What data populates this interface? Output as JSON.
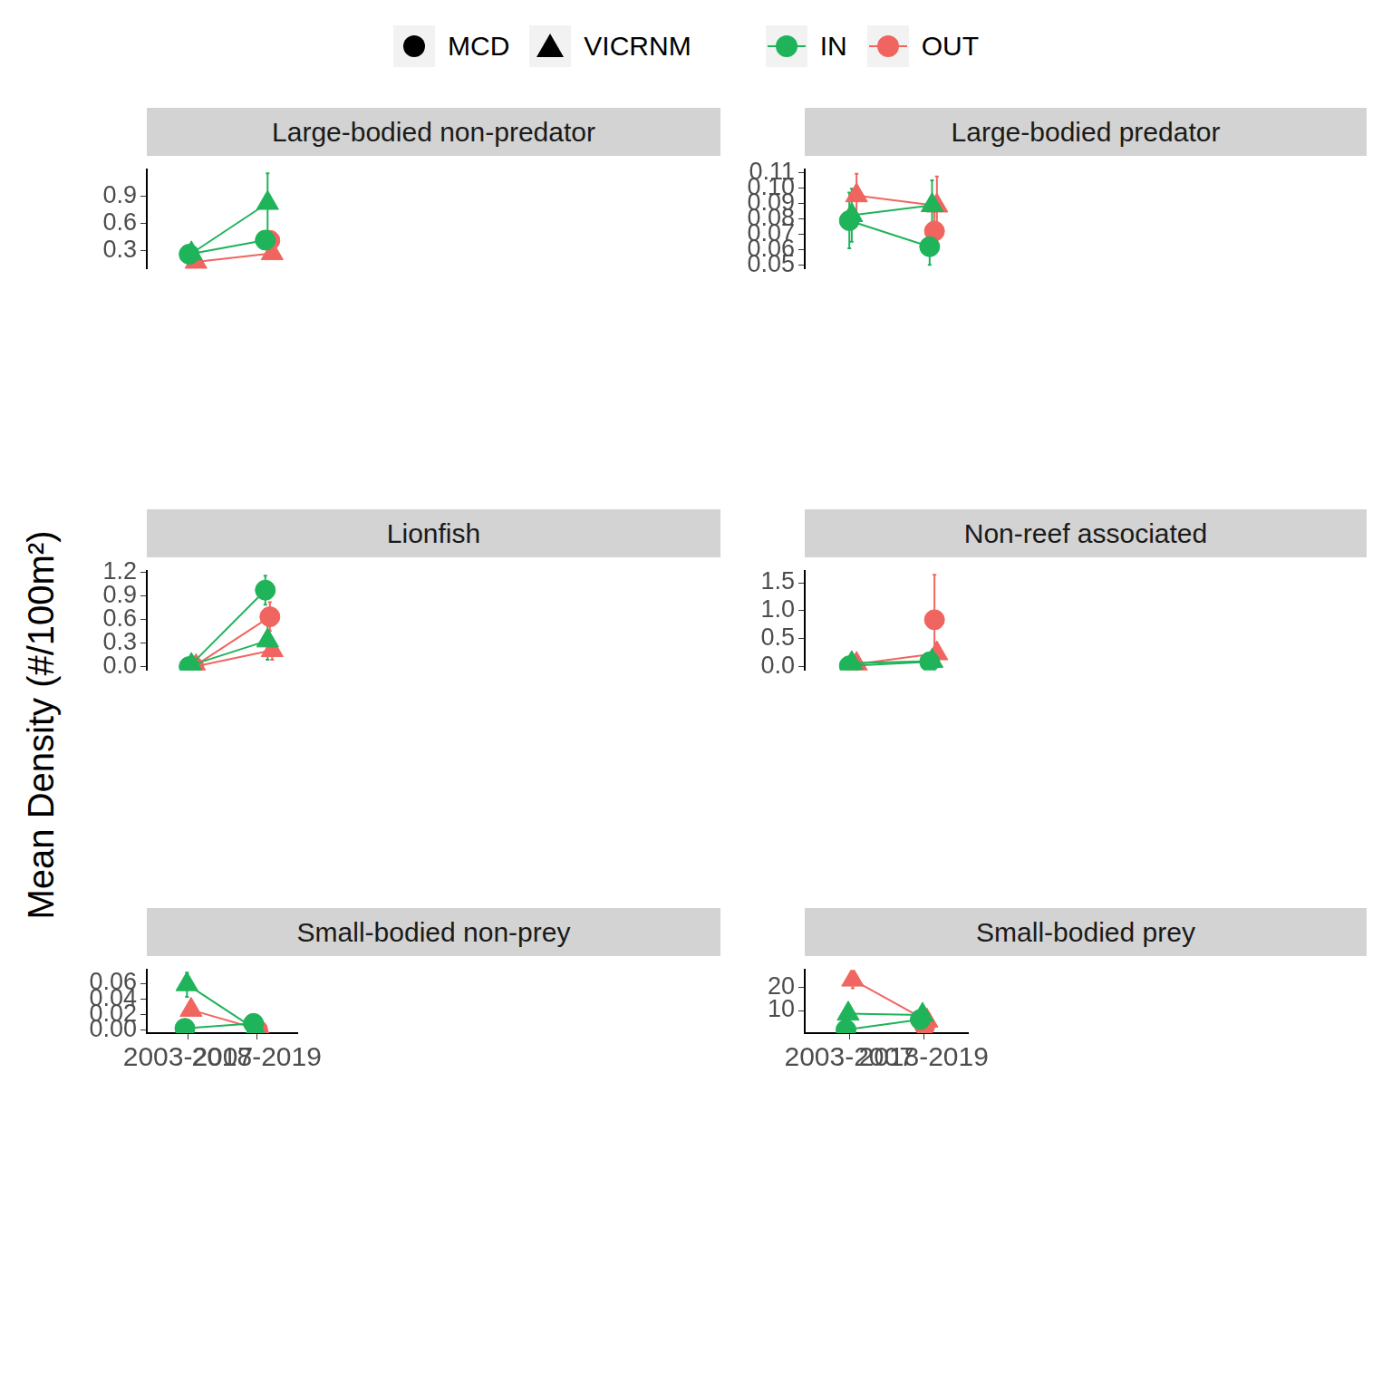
{
  "ylabel": "Mean Density (#/100m²)",
  "legend_items": [
    {
      "name": "MCD",
      "marker": "circle"
    },
    {
      "name": "VICRNM",
      "marker": "triangle"
    },
    {
      "name": "IN",
      "color": "#1fb35a"
    },
    {
      "name": "OUT",
      "color": "#f06560"
    }
  ],
  "chart_data": [
    {
      "type": "line",
      "title": "Large-bodied non-predator",
      "categories": [
        "2003-2007",
        "2018-2019"
      ],
      "ylim": [
        0.095,
        1.19
      ],
      "yticks": [
        0.3,
        0.6,
        0.9
      ],
      "grid": false,
      "tick_labels": "y",
      "series": [
        {
          "marker": "circle",
          "color": "#1fb35a",
          "values": [
            0.258,
            0.413
          ],
          "error_low": [
            0.21,
            0.36
          ],
          "error_high": [
            0.31,
            0.47
          ]
        },
        {
          "marker": "triangle",
          "color": "#1fb35a",
          "values": [
            0.265,
            0.822
          ],
          "error_low": [
            0.22,
            0.32
          ],
          "error_high": [
            0.31,
            1.15
          ]
        },
        {
          "marker": "circle",
          "color": "#f06560",
          "values": [
            null,
            0.41
          ],
          "error_low": [
            null,
            0.36
          ],
          "error_high": [
            null,
            0.46
          ]
        },
        {
          "marker": "triangle",
          "color": "#f06560",
          "values": [
            0.172,
            0.267
          ],
          "error_low": [
            null,
            0.23
          ],
          "error_high": [
            null,
            0.31
          ]
        }
      ]
    },
    {
      "type": "line",
      "title": "Large-bodied predator",
      "categories": [
        "2003-2007",
        "2018-2019"
      ],
      "ylim": [
        0.0476,
        0.1119
      ],
      "yticks": [
        0.05,
        0.06,
        0.07,
        0.08,
        0.09,
        {
          "value": 0.1,
          "label": "0.10"
        },
        0.11
      ],
      "grid": false,
      "tick_labels": "y",
      "series": [
        {
          "marker": "circle",
          "color": "#1fb35a",
          "values": [
            0.0789,
            0.062
          ],
          "error_low": [
            0.061,
            0.0503
          ],
          "error_high": [
            0.097,
            0.0737
          ]
        },
        {
          "marker": "triangle",
          "color": "#1fb35a",
          "values": [
            0.0824,
            0.0888
          ],
          "error_low": [
            0.0653,
            0.072
          ],
          "error_high": [
            0.0996,
            0.105
          ]
        },
        {
          "marker": "circle",
          "color": "#f06560",
          "values": [
            null,
            0.0721
          ],
          "error_low": [
            null,
            0.0591
          ],
          "error_high": [
            null,
            0.0847
          ]
        },
        {
          "marker": "triangle",
          "color": "#f06560",
          "values": [
            0.0952,
            0.0886
          ],
          "error_low": [
            0.0803,
            0.0686
          ],
          "error_high": [
            0.1093,
            0.1074
          ]
        }
      ]
    },
    {
      "type": "line",
      "title": "Lionfish",
      "categories": [
        "2003-2007",
        "2018-2019"
      ],
      "ylim": [
        -0.048,
        1.21
      ],
      "yticks": [
        {
          "value": 0,
          "label": "0.0"
        },
        0.3,
        0.6,
        0.9,
        1.2
      ],
      "grid": false,
      "tick_labels": "y",
      "series": [
        {
          "marker": "circle",
          "color": "#1fb35a",
          "values": [
            0.0,
            0.969
          ],
          "error_low": [
            null,
            0.785
          ],
          "error_high": [
            null,
            1.152
          ]
        },
        {
          "marker": "triangle",
          "color": "#1fb35a",
          "values": [
            0.02,
            0.33
          ],
          "error_low": [
            null,
            0.088
          ],
          "error_high": [
            null,
            0.564
          ]
        },
        {
          "marker": "circle",
          "color": "#f06560",
          "values": [
            0.0,
            0.632
          ],
          "error_low": [
            null,
            0.452
          ],
          "error_high": [
            null,
            0.816
          ]
        },
        {
          "marker": "triangle",
          "color": "#f06560",
          "values": [
            0.005,
            0.207
          ],
          "error_low": [
            null,
            0.088
          ],
          "error_high": [
            null,
            0.316
          ]
        }
      ]
    },
    {
      "type": "line",
      "title": "Non-reef associated",
      "categories": [
        "2003-2007",
        "2018-2019"
      ],
      "ylim": [
        -0.063,
        1.707
      ],
      "yticks": [
        {
          "value": 0,
          "label": "0.0"
        },
        0.5,
        {
          "value": 1,
          "label": "1.0"
        },
        1.5
      ],
      "grid": false,
      "tick_labels": "y",
      "series": [
        {
          "marker": "circle",
          "color": "#1fb35a",
          "values": [
            0.02,
            0.09
          ],
          "error_low": [
            null,
            null
          ],
          "error_high": [
            null,
            null
          ]
        },
        {
          "marker": "triangle",
          "color": "#1fb35a",
          "values": [
            0.065,
            0.105
          ],
          "error_low": [
            null,
            null
          ],
          "error_high": [
            null,
            null
          ]
        },
        {
          "marker": "circle",
          "color": "#f06560",
          "values": [
            null,
            0.84
          ],
          "error_low": [
            null,
            0.035
          ],
          "error_high": [
            null,
            1.64
          ]
        },
        {
          "marker": "triangle",
          "color": "#f06560",
          "values": [
            0.05,
            0.24
          ],
          "error_low": [
            null,
            0.035
          ],
          "error_high": [
            null,
            0.415
          ]
        }
      ]
    },
    {
      "type": "line",
      "title": "Small-bodied non-prey",
      "categories": [
        "2003-2007",
        "2018-2019"
      ],
      "ylim": [
        -0.0037,
        0.0772
      ],
      "yticks": [
        {
          "value": 0,
          "label": "0.00"
        },
        0.02,
        0.04,
        0.06
      ],
      "grid": false,
      "series": [
        {
          "marker": "circle",
          "color": "#1fb35a",
          "values": [
            0.0024,
            0.0087
          ],
          "error_low": [
            null,
            0.0039
          ],
          "error_high": [
            null,
            0.0148
          ]
        },
        {
          "marker": "triangle",
          "color": "#1fb35a",
          "values": [
            0.0587,
            0.001
          ],
          "error_low": [
            0.0426,
            null
          ],
          "error_high": [
            0.0737,
            null
          ]
        },
        {
          "marker": "circle",
          "color": "#f06560",
          "values": [
            null,
            0.0005
          ],
          "error_low": [
            null,
            null
          ],
          "error_high": [
            null,
            null
          ]
        },
        {
          "marker": "triangle",
          "color": "#f06560",
          "values": [
            0.026,
            0.0007
          ],
          "error_low": [
            0.0196,
            null
          ],
          "error_high": [
            0.0324,
            null
          ]
        }
      ]
    },
    {
      "type": "line",
      "title": "Small-bodied prey",
      "categories": [
        "2003-2007",
        "2018-2019"
      ],
      "ylim": [
        0.22,
        27.57
      ],
      "yticks": [
        10,
        20
      ],
      "grid": false,
      "series": [
        {
          "marker": "circle",
          "color": "#1fb35a",
          "values": [
            1.69,
            6.1
          ],
          "error_low": [
            null,
            5.0
          ],
          "error_high": [
            null,
            6.84
          ]
        },
        {
          "marker": "triangle",
          "color": "#1fb35a",
          "values": [
            8.6,
            8.1
          ],
          "error_low": [
            7.5,
            7.35
          ],
          "error_high": [
            9.3,
            9.4
          ]
        },
        {
          "marker": "circle",
          "color": "#f06560",
          "values": [
            null,
            3.16
          ],
          "error_low": [
            null,
            null
          ],
          "error_high": [
            null,
            null
          ]
        },
        {
          "marker": "triangle",
          "color": "#f06560",
          "values": [
            23.3,
            5.6
          ],
          "error_low": [
            19.6,
            5.0
          ],
          "error_high": [
            26.5,
            6.25
          ]
        }
      ]
    }
  ]
}
